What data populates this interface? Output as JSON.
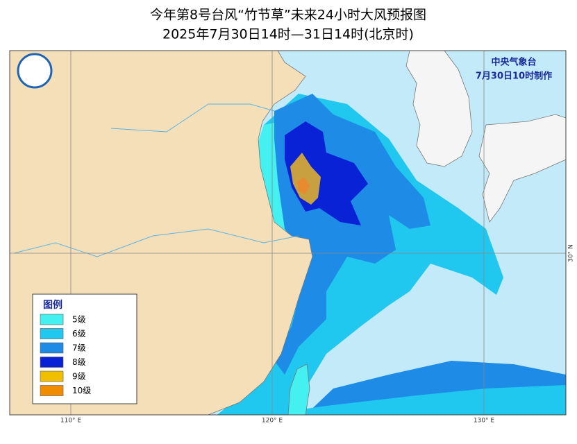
{
  "header": {
    "title_line1": "今年第8号台风“竹节草”未来24小时大风预报图",
    "title_line2": "2025年7月30日14时—31日14时(北京时)"
  },
  "agency": {
    "name": "中央气象台",
    "issued": "7月30日10时制作"
  },
  "graticule": {
    "lon_labels": [
      "110° E",
      "120° E",
      "130° E"
    ],
    "lat_labels": [
      "30° N"
    ]
  },
  "legend": {
    "title": "图例",
    "items": [
      {
        "label": "5级",
        "color": "#44f0f0"
      },
      {
        "label": "6级",
        "color": "#20c8f0"
      },
      {
        "label": "7级",
        "color": "#1e8ce6"
      },
      {
        "label": "8级",
        "color": "#0a22d6"
      },
      {
        "label": "9级",
        "color": "#f0c000"
      },
      {
        "label": "10级",
        "color": "#f08c00"
      }
    ]
  }
}
